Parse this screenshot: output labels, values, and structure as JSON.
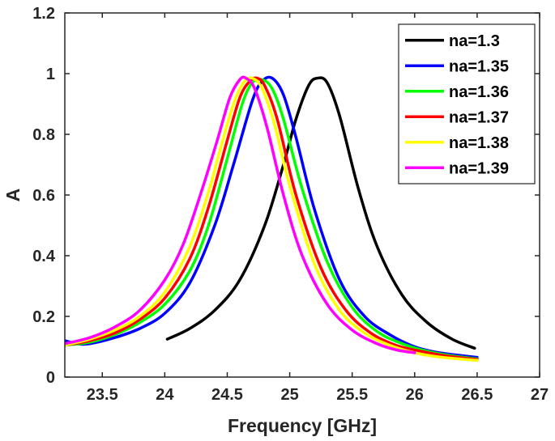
{
  "chart_data": {
    "type": "line",
    "title": "",
    "xlabel": "Frequency [GHz]",
    "ylabel": "A",
    "xlim": [
      23.2,
      27
    ],
    "ylim": [
      0,
      1.2
    ],
    "xticks": [
      "23.5",
      "24",
      "24.5",
      "25",
      "25.5",
      "26",
      "26.5",
      "27"
    ],
    "yticks": [
      "0",
      "0.2",
      "0.4",
      "0.6",
      "0.8",
      "1",
      "1.2"
    ],
    "grid": false,
    "legend_position": "top-right",
    "series": [
      {
        "name": "na=1.3",
        "color": "#000000",
        "x": [
          24.02,
          24.2,
          24.4,
          24.6,
          24.8,
          24.95,
          25.05,
          25.15,
          25.22,
          25.3,
          25.4,
          25.55,
          25.7,
          25.9,
          26.1,
          26.3,
          26.48
        ],
        "y": [
          0.125,
          0.16,
          0.22,
          0.32,
          0.5,
          0.7,
          0.85,
          0.96,
          0.985,
          0.97,
          0.86,
          0.62,
          0.43,
          0.27,
          0.18,
          0.125,
          0.095
        ]
      },
      {
        "name": "na=1.35",
        "color": "#0000ff",
        "x": [
          23.2,
          23.3,
          23.4,
          23.6,
          23.8,
          24.0,
          24.2,
          24.4,
          24.55,
          24.7,
          24.78,
          24.86,
          24.95,
          25.05,
          25.2,
          25.4,
          25.6,
          25.8,
          26.0,
          26.2,
          26.5
        ],
        "y": [
          0.12,
          0.11,
          0.11,
          0.13,
          0.16,
          0.21,
          0.31,
          0.5,
          0.7,
          0.91,
          0.975,
          0.985,
          0.93,
          0.79,
          0.55,
          0.32,
          0.2,
          0.14,
          0.1,
          0.08,
          0.065
        ]
      },
      {
        "name": "na=1.36",
        "color": "#00ff00",
        "x": [
          23.2,
          23.4,
          23.6,
          23.8,
          24.0,
          24.2,
          24.35,
          24.5,
          24.62,
          24.7,
          24.78,
          24.86,
          24.95,
          25.1,
          25.3,
          25.5,
          25.7,
          25.9,
          26.1,
          26.3,
          26.5
        ],
        "y": [
          0.105,
          0.115,
          0.14,
          0.18,
          0.24,
          0.35,
          0.5,
          0.72,
          0.9,
          0.97,
          0.98,
          0.95,
          0.85,
          0.62,
          0.38,
          0.23,
          0.15,
          0.11,
          0.085,
          0.07,
          0.06
        ]
      },
      {
        "name": "na=1.37",
        "color": "#ff0000",
        "x": [
          23.2,
          23.4,
          23.6,
          23.8,
          24.0,
          24.2,
          24.35,
          24.5,
          24.6,
          24.68,
          24.74,
          24.8,
          24.9,
          25.05,
          25.25,
          25.45,
          25.65,
          25.85,
          26.05,
          26.25,
          26.5
        ],
        "y": [
          0.105,
          0.12,
          0.145,
          0.19,
          0.26,
          0.39,
          0.56,
          0.78,
          0.92,
          0.975,
          0.985,
          0.96,
          0.85,
          0.6,
          0.36,
          0.22,
          0.145,
          0.105,
          0.085,
          0.07,
          0.058
        ]
      },
      {
        "name": "na=1.38",
        "color": "#ffff00",
        "x": [
          23.2,
          23.4,
          23.6,
          23.8,
          24.0,
          24.2,
          24.35,
          24.45,
          24.55,
          24.63,
          24.7,
          24.78,
          24.88,
          25.0,
          25.2,
          25.4,
          25.6,
          25.8,
          26.0,
          26.2,
          26.5
        ],
        "y": [
          0.105,
          0.125,
          0.155,
          0.2,
          0.28,
          0.43,
          0.61,
          0.76,
          0.9,
          0.97,
          0.985,
          0.95,
          0.83,
          0.63,
          0.37,
          0.22,
          0.145,
          0.105,
          0.08,
          0.066,
          0.055
        ]
      },
      {
        "name": "na=1.39",
        "color": "#ff00ff",
        "x": [
          23.2,
          23.4,
          23.6,
          23.8,
          24.0,
          24.15,
          24.3,
          24.42,
          24.52,
          24.6,
          24.65,
          24.72,
          24.82,
          24.95,
          25.1,
          25.3,
          25.5,
          25.7,
          25.85,
          26.0
        ],
        "y": [
          0.11,
          0.13,
          0.165,
          0.22,
          0.32,
          0.44,
          0.62,
          0.78,
          0.92,
          0.98,
          0.985,
          0.95,
          0.82,
          0.6,
          0.4,
          0.24,
          0.155,
          0.11,
          0.09,
          0.08
        ]
      }
    ]
  }
}
